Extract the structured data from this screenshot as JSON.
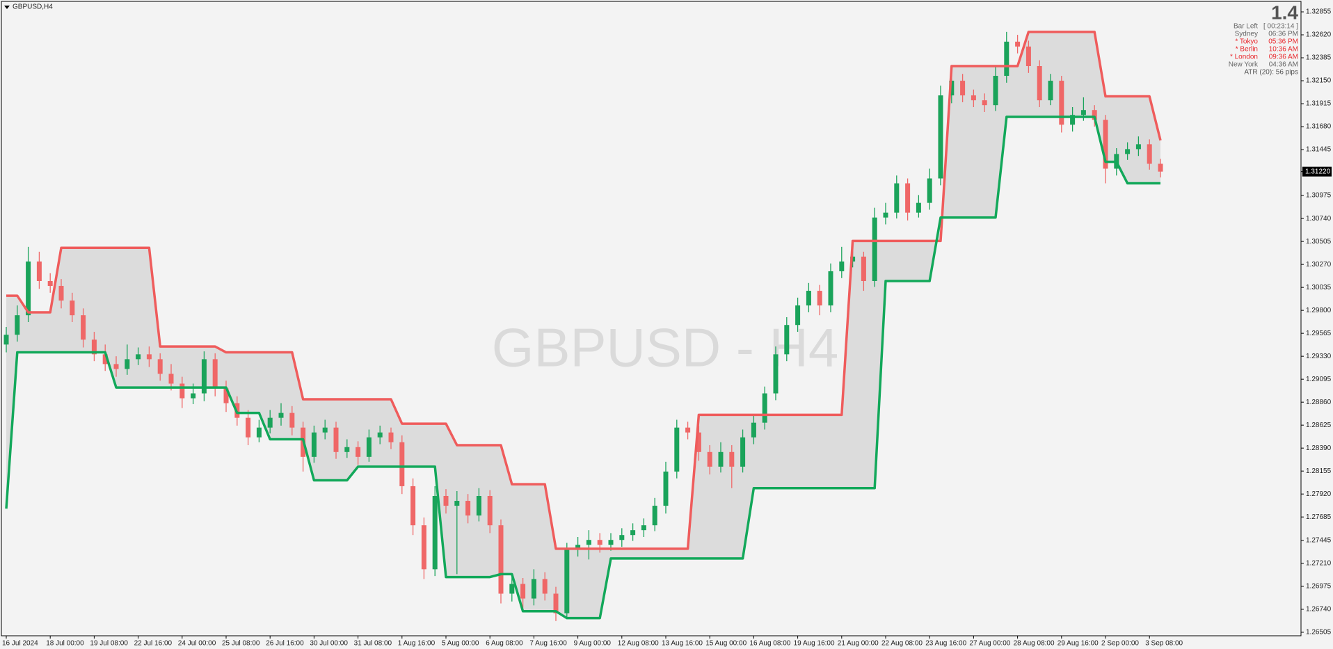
{
  "chart_data": {
    "type": "candlestick",
    "title": "GBPUSD,H4",
    "watermark": "GBPUSD - H4",
    "categories": [
      "16 Jul 2024",
      null,
      null,
      null,
      "18 Jul 00:00",
      null,
      null,
      null,
      "19 Jul 08:00",
      null,
      null,
      null,
      "22 Jul 16:00",
      null,
      null,
      null,
      "24 Jul 00:00",
      null,
      null,
      null,
      "25 Jul 08:00",
      null,
      null,
      null,
      "26 Jul 16:00",
      null,
      null,
      null,
      "30 Jul 00:00",
      null,
      null,
      null,
      "31 Jul 08:00",
      null,
      null,
      null,
      "1 Aug 16:00",
      null,
      null,
      null,
      "5 Aug 00:00",
      null,
      null,
      null,
      "6 Aug 08:00",
      null,
      null,
      null,
      "7 Aug 16:00",
      null,
      null,
      null,
      "9 Aug 00:00",
      null,
      null,
      null,
      "12 Aug 08:00",
      null,
      null,
      null,
      "13 Aug 16:00",
      null,
      null,
      null,
      "15 Aug 00:00",
      null,
      null,
      null,
      "16 Aug 08:00",
      null,
      null,
      null,
      "19 Aug 16:00",
      null,
      null,
      null,
      "21 Aug 00:00",
      null,
      null,
      null,
      "22 Aug 08:00",
      null,
      null,
      null,
      "23 Aug 16:00",
      null,
      null,
      null,
      "27 Aug 00:00",
      null,
      null,
      null,
      "28 Aug 08:00",
      null,
      null,
      null,
      "29 Aug 16:00",
      null,
      null,
      null,
      "2 Sep 00:00",
      null,
      null,
      null,
      "3 Sep 08:00",
      null
    ],
    "open": [
      1.2945,
      1.2955,
      1.2975,
      1.303,
      1.301,
      1.3005,
      1.299,
      1.2975,
      1.295,
      1.2935,
      1.2925,
      1.292,
      1.293,
      1.2935,
      1.293,
      1.2915,
      1.2905,
      1.289,
      1.2895,
      1.293,
      1.29,
      1.2885,
      1.287,
      1.285,
      1.286,
      1.287,
      1.2875,
      1.286,
      1.283,
      1.2855,
      1.286,
      1.2835,
      1.284,
      1.283,
      1.285,
      1.2855,
      1.2845,
      1.28,
      1.276,
      1.2715,
      1.279,
      1.278,
      1.2785,
      1.277,
      1.279,
      1.276,
      1.269,
      1.27,
      1.2685,
      1.2705,
      1.269,
      1.267,
      1.2735,
      1.274,
      1.2745,
      1.274,
      1.2745,
      1.275,
      1.2755,
      1.276,
      1.278,
      1.2815,
      1.286,
      1.2855,
      1.2835,
      1.282,
      1.2835,
      1.282,
      1.285,
      1.2865,
      1.2895,
      1.2935,
      1.2965,
      1.2985,
      1.3,
      1.2985,
      1.302,
      1.303,
      1.3035,
      1.301,
      1.3075,
      1.308,
      1.311,
      1.308,
      1.309,
      1.3115,
      1.32,
      1.3215,
      1.32,
      1.3195,
      1.319,
      1.322,
      1.3255,
      1.325,
      1.323,
      1.3195,
      1.3215,
      1.317,
      1.318,
      1.3185,
      1.3175,
      1.3125,
      1.314,
      1.3145,
      1.315,
      1.313
    ],
    "high": [
      1.2963,
      1.2985,
      1.3045,
      1.304,
      1.3018,
      1.3012,
      1.2998,
      1.2982,
      1.2958,
      1.2945,
      1.2933,
      1.2945,
      1.2942,
      1.2943,
      1.2936,
      1.2925,
      1.2912,
      1.2905,
      1.2938,
      1.2936,
      1.2908,
      1.2892,
      1.2878,
      1.2868,
      1.2878,
      1.2885,
      1.2882,
      1.2866,
      1.2862,
      1.2868,
      1.2866,
      1.2848,
      1.2846,
      1.2858,
      1.2862,
      1.286,
      1.2852,
      1.2808,
      1.2768,
      1.28,
      1.2797,
      1.2795,
      1.2792,
      1.2798,
      1.2796,
      1.2766,
      1.271,
      1.2706,
      1.2715,
      1.2712,
      1.2697,
      1.2742,
      1.2748,
      1.2755,
      1.2752,
      1.2752,
      1.2757,
      1.2762,
      1.2767,
      1.2788,
      1.2825,
      1.2868,
      1.2866,
      1.2862,
      1.2842,
      1.2845,
      1.2842,
      1.2858,
      1.2872,
      1.2902,
      1.2943,
      1.2973,
      1.2993,
      1.3008,
      1.3006,
      1.3028,
      1.3045,
      1.3042,
      1.304,
      1.3085,
      1.309,
      1.3118,
      1.3115,
      1.3098,
      1.3125,
      1.321,
      1.3228,
      1.3222,
      1.3206,
      1.3202,
      1.323,
      1.3265,
      1.3262,
      1.3256,
      1.3236,
      1.3222,
      1.322,
      1.3188,
      1.3198,
      1.319,
      1.318,
      1.3146,
      1.3152,
      1.3158,
      1.3155,
      1.3135
    ],
    "low": [
      1.2937,
      1.2948,
      1.2968,
      1.3002,
      1.2998,
      1.2982,
      1.2968,
      1.2942,
      1.2928,
      1.2918,
      1.2912,
      1.2914,
      1.2924,
      1.2922,
      1.2908,
      1.2898,
      1.288,
      1.2884,
      1.2887,
      1.2892,
      1.2876,
      1.2862,
      1.2842,
      1.2845,
      1.2854,
      1.2862,
      1.2852,
      1.2815,
      1.2824,
      1.2848,
      1.2828,
      1.2829,
      1.2822,
      1.2825,
      1.2843,
      1.2838,
      1.2792,
      1.275,
      1.2705,
      1.2708,
      1.2772,
      1.271,
      1.2762,
      1.2764,
      1.2752,
      1.268,
      1.2682,
      1.2675,
      1.2678,
      1.2683,
      1.2662,
      1.2664,
      1.2728,
      1.2725,
      1.2732,
      1.2734,
      1.2738,
      1.2744,
      1.2748,
      1.2754,
      1.2772,
      1.2808,
      1.2848,
      1.2826,
      1.2812,
      1.2814,
      1.2798,
      1.2814,
      1.2843,
      1.2858,
      1.2888,
      1.2928,
      1.2958,
      1.2978,
      1.2975,
      1.2978,
      1.3013,
      1.3024,
      1.3,
      1.3004,
      1.3068,
      1.3074,
      1.3072,
      1.3075,
      1.3083,
      1.3108,
      1.3192,
      1.3193,
      1.3188,
      1.3183,
      1.3184,
      1.3213,
      1.3243,
      1.3223,
      1.3188,
      1.319,
      1.3162,
      1.3163,
      1.3174,
      1.3168,
      1.311,
      1.3118,
      1.3134,
      1.3138,
      1.3124,
      1.3116
    ],
    "close": [
      1.2955,
      1.2975,
      1.303,
      1.301,
      1.3005,
      1.299,
      1.2975,
      1.295,
      1.2935,
      1.2925,
      1.292,
      1.293,
      1.2935,
      1.293,
      1.2915,
      1.2905,
      1.289,
      1.2895,
      1.293,
      1.29,
      1.2885,
      1.287,
      1.285,
      1.286,
      1.287,
      1.2875,
      1.286,
      1.283,
      1.2855,
      1.286,
      1.2835,
      1.284,
      1.283,
      1.285,
      1.2855,
      1.2845,
      1.28,
      1.276,
      1.2715,
      1.279,
      1.278,
      1.2785,
      1.277,
      1.279,
      1.276,
      1.269,
      1.27,
      1.2685,
      1.2705,
      1.269,
      1.267,
      1.2735,
      1.274,
      1.2745,
      1.274,
      1.2745,
      1.275,
      1.2755,
      1.276,
      1.278,
      1.2815,
      1.286,
      1.2855,
      1.2835,
      1.282,
      1.2835,
      1.282,
      1.285,
      1.2865,
      1.2895,
      1.2935,
      1.2965,
      1.2985,
      1.3,
      1.2985,
      1.302,
      1.303,
      1.3035,
      1.301,
      1.3075,
      1.308,
      1.311,
      1.308,
      1.309,
      1.3115,
      1.32,
      1.3215,
      1.32,
      1.3195,
      1.319,
      1.322,
      1.3255,
      1.325,
      1.323,
      1.3195,
      1.3215,
      1.317,
      1.318,
      1.3185,
      1.3175,
      1.3125,
      1.314,
      1.3145,
      1.315,
      1.313,
      1.3122
    ],
    "up_color": "#1aa35a",
    "down_color": "#ef6767",
    "upper": {
      "color": "#ef5c5c",
      "values": [
        1.2995,
        1.2995,
        1.2978,
        1.2978,
        1.2978,
        1.3044,
        1.3044,
        1.3044,
        1.3044,
        1.3044,
        1.3044,
        1.3044,
        1.3044,
        1.3044,
        1.2943,
        1.2943,
        1.2943,
        1.2943,
        1.2943,
        1.2943,
        1.2937,
        1.2937,
        1.2937,
        1.2937,
        1.2937,
        1.2937,
        1.2937,
        1.2889,
        1.2889,
        1.2889,
        1.2889,
        1.2889,
        1.2889,
        1.2889,
        1.2889,
        1.2889,
        1.2864,
        1.2864,
        1.2864,
        1.2864,
        1.2864,
        1.2842,
        1.2842,
        1.2842,
        1.2842,
        1.2842,
        1.2802,
        1.2802,
        1.2802,
        1.2802,
        1.2736,
        1.2736,
        1.2736,
        1.2736,
        1.2736,
        1.2736,
        1.2736,
        1.2736,
        1.2736,
        1.2736,
        1.2736,
        1.2736,
        1.2736,
        1.2873,
        1.2873,
        1.2873,
        1.2873,
        1.2873,
        1.2873,
        1.2873,
        1.2873,
        1.2873,
        1.2873,
        1.2873,
        1.2873,
        1.2873,
        1.2873,
        1.3051,
        1.3051,
        1.3051,
        1.3051,
        1.3051,
        1.3051,
        1.3051,
        1.3051,
        1.3051,
        1.323,
        1.323,
        1.323,
        1.323,
        1.323,
        1.323,
        1.323,
        1.3265,
        1.3265,
        1.3265,
        1.3265,
        1.3265,
        1.3265,
        1.3265,
        1.3199,
        1.3199,
        1.3199,
        1.3199,
        1.3199,
        1.3154
      ]
    },
    "lower": {
      "color": "#12a85a",
      "values": [
        1.2777,
        1.2937,
        1.2937,
        1.2937,
        1.2937,
        1.2937,
        1.2937,
        1.2937,
        1.2937,
        1.2937,
        1.2901,
        1.2901,
        1.2901,
        1.2901,
        1.2901,
        1.2901,
        1.2901,
        1.2901,
        1.2901,
        1.2901,
        1.2901,
        1.2875,
        1.2875,
        1.2875,
        1.2848,
        1.2848,
        1.2848,
        1.2848,
        1.2806,
        1.2806,
        1.2806,
        1.2806,
        1.282,
        1.282,
        1.282,
        1.282,
        1.282,
        1.282,
        1.282,
        1.282,
        1.2707,
        1.2707,
        1.2707,
        1.2707,
        1.2707,
        1.271,
        1.271,
        1.2672,
        1.2672,
        1.2672,
        1.2672,
        1.2665,
        1.2665,
        1.2665,
        1.2665,
        1.2726,
        1.2726,
        1.2726,
        1.2726,
        1.2726,
        1.2726,
        1.2726,
        1.2726,
        1.2726,
        1.2726,
        1.2726,
        1.2726,
        1.2726,
        1.2798,
        1.2798,
        1.2798,
        1.2798,
        1.2798,
        1.2798,
        1.2798,
        1.2798,
        1.2798,
        1.2798,
        1.2798,
        1.2798,
        1.301,
        1.301,
        1.301,
        1.301,
        1.301,
        1.3075,
        1.3075,
        1.3075,
        1.3075,
        1.3075,
        1.3075,
        1.3178,
        1.3178,
        1.3178,
        1.3178,
        1.3178,
        1.3178,
        1.3178,
        1.3178,
        1.3178,
        1.3132,
        1.3132,
        1.311,
        1.311,
        1.311,
        1.311
      ]
    },
    "fill_color": "#dcdcdc",
    "ylim": [
      1.26469,
      1.32955
    ],
    "yticks": [
      {
        "value": 1.32855,
        "label": "1.32855"
      },
      {
        "value": 1.3262,
        "label": "1.32620"
      },
      {
        "value": 1.32385,
        "label": "1.32385"
      },
      {
        "value": 1.3215,
        "label": "1.32150"
      },
      {
        "value": 1.31915,
        "label": "1.31915"
      },
      {
        "value": 1.3168,
        "label": "1.31680"
      },
      {
        "value": 1.31445,
        "label": "1.31445"
      },
      {
        "value": 1.30975,
        "label": "1.30975"
      },
      {
        "value": 1.3074,
        "label": "1.30740"
      },
      {
        "value": 1.30505,
        "label": "1.30505"
      },
      {
        "value": 1.3027,
        "label": "1.30270"
      },
      {
        "value": 1.30035,
        "label": "1.30035"
      },
      {
        "value": 1.298,
        "label": "1.29800"
      },
      {
        "value": 1.29565,
        "label": "1.29565"
      },
      {
        "value": 1.2933,
        "label": "1.29330"
      },
      {
        "value": 1.29095,
        "label": "1.29095"
      },
      {
        "value": 1.2886,
        "label": "1.28860"
      },
      {
        "value": 1.28625,
        "label": "1.28625"
      },
      {
        "value": 1.2839,
        "label": "1.28390"
      },
      {
        "value": 1.28155,
        "label": "1.28155"
      },
      {
        "value": 1.2792,
        "label": "1.27920"
      },
      {
        "value": 1.27685,
        "label": "1.27685"
      },
      {
        "value": 1.27445,
        "label": "1.27445"
      },
      {
        "value": 1.2721,
        "label": "1.27210"
      },
      {
        "value": 1.26975,
        "label": "1.26975"
      },
      {
        "value": 1.2674,
        "label": "1.26740"
      },
      {
        "value": 1.26505,
        "label": "1.26505"
      }
    ],
    "bid": {
      "value": 1.3122,
      "label": "1.31220"
    },
    "info": {
      "spread": "1.4",
      "rows": [
        {
          "name": "Bar Left",
          "time": "[ 00:23:14 ]",
          "color": "#666666"
        },
        {
          "name": "Sydney",
          "time": "06:36 PM",
          "color": "#666666"
        },
        {
          "name": "* Tokyo",
          "time": "05:36 PM",
          "color": "#e8262b"
        },
        {
          "name": "* Berlin",
          "time": "10:36 AM",
          "color": "#e8262b"
        },
        {
          "name": "* London",
          "time": "09:36 AM",
          "color": "#e8262b"
        },
        {
          "name": "New York",
          "time": "04:36 AM",
          "color": "#666666"
        }
      ],
      "atr": "ATR (20): 56 pips"
    }
  }
}
